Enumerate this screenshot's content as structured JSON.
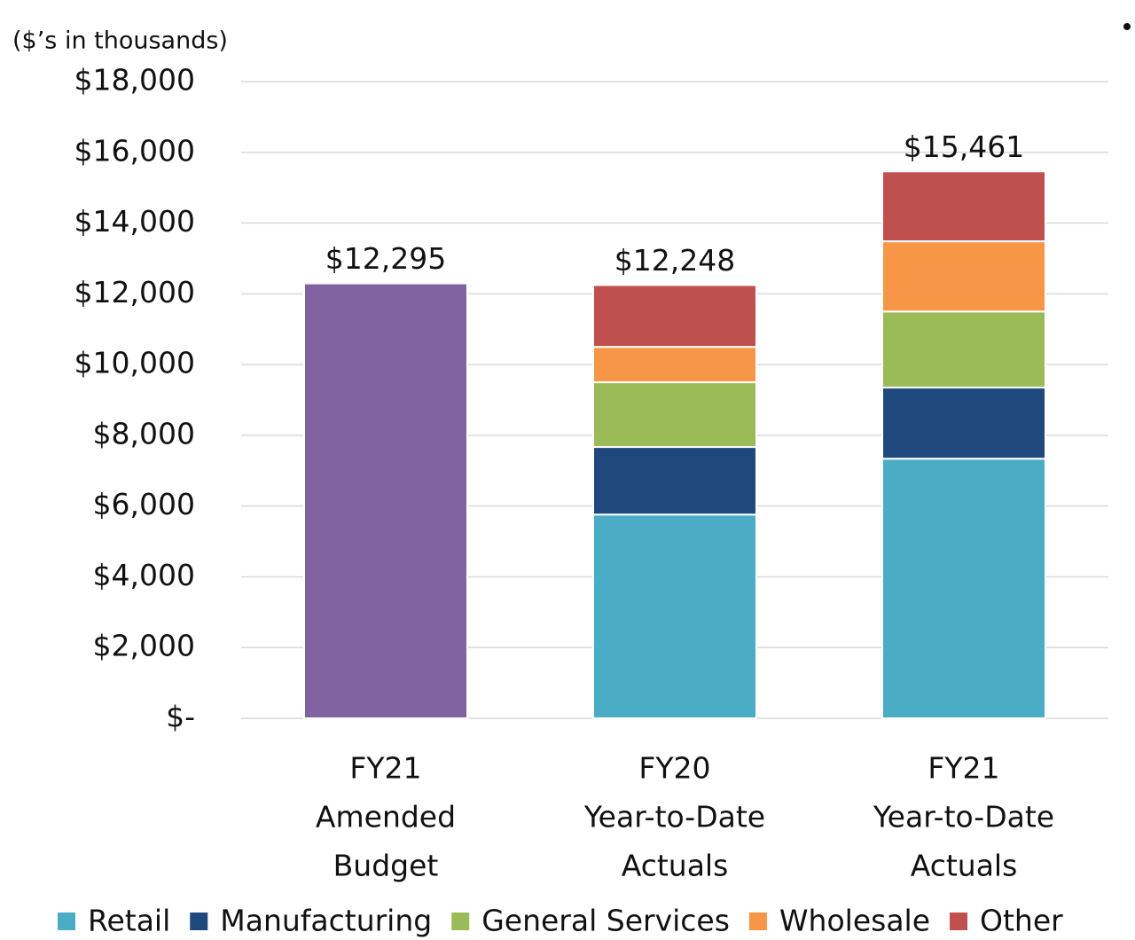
{
  "chart_data": {
    "type": "stacked_bar",
    "subtitle": "($’s in thousands)",
    "categories": [
      [
        "FY21",
        "Amended",
        "Budget"
      ],
      [
        "FY20",
        "Year-to-Date",
        "Actuals"
      ],
      [
        "FY21",
        "Year-to-Date",
        "Actuals"
      ]
    ],
    "series": [
      {
        "color": "#8064a2",
        "values": [
          12295,
          null,
          null
        ]
      },
      {
        "name": "Retail",
        "color": "#4bacc6",
        "values": [
          null,
          5760,
          7340
        ]
      },
      {
        "name": "Manufacturing",
        "color": "#1f497d",
        "values": [
          null,
          1910,
          2010
        ]
      },
      {
        "name": "General Services",
        "color": "#9bbb59",
        "values": [
          null,
          1830,
          2150
        ]
      },
      {
        "name": "Wholesale",
        "color": "#f79646",
        "values": [
          null,
          1000,
          1985
        ]
      },
      {
        "name": "Other",
        "color": "#c0504d",
        "values": [
          null,
          1748,
          1976
        ]
      }
    ],
    "totals": [
      12295,
      12248,
      15461
    ],
    "total_labels": [
      "$12,295",
      "$12,248",
      "$15,461"
    ],
    "ylim": [
      0,
      18000
    ],
    "yticks": [
      {
        "value": 0,
        "label": "$-"
      },
      {
        "value": 2000,
        "label": "$2,000"
      },
      {
        "value": 4000,
        "label": "$4,000"
      },
      {
        "value": 6000,
        "label": "$6,000"
      },
      {
        "value": 8000,
        "label": "$8,000"
      },
      {
        "value": 10000,
        "label": "$10,000"
      },
      {
        "value": 12000,
        "label": "$12,000"
      },
      {
        "value": 14000,
        "label": "$14,000"
      },
      {
        "value": 16000,
        "label": "$16,000"
      },
      {
        "value": 18000,
        "label": "$18,000"
      }
    ],
    "grid": true
  }
}
